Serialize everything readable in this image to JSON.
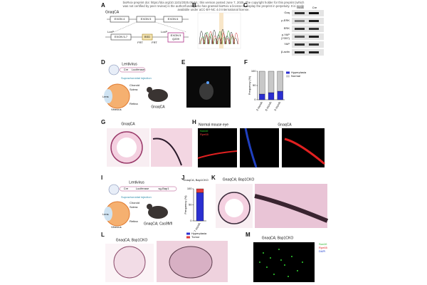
{
  "header": {
    "lines": [
      "bioRxiv preprint doi: https://doi.org/10.1101/2025.06.04.; this version posted June 7, 2025. The copyright holder for this preprint (which",
      "was not certified by peer review) is the author/funder, who has granted bioRxiv a license to display the preprint in perpetuity. It is made",
      "available under aCC-BY-NC 4.0 International license."
    ]
  },
  "panels": {
    "A": {
      "label": "A",
      "title": "GnaqCA",
      "exon4": "EXON 4",
      "exon5": "EXON 5",
      "exon6": "EXON 6",
      "loxp1": "LoxP",
      "exon57": "EXON 5-7",
      "bsd": "BSD",
      "loxp2": "LoxP",
      "exon5q": "EXON 5",
      "q209": "Q209",
      "frt1": "FRT",
      "frt2": "FRT"
    },
    "B": {
      "label": "B"
    },
    "C": {
      "label": "C",
      "mock": "Mock",
      "cre": "Cre",
      "rows": [
        "Gαq",
        "p-ERK",
        "ERK",
        "p-YAP",
        "(Y357)",
        "YAP",
        "β-actin"
      ]
    },
    "D": {
      "label": "D",
      "vector": "Lentivirus",
      "cre": "Cre",
      "luc": "Luciferase",
      "injection": "Suprachoroidal injection",
      "choroid": "Choroid",
      "sclera": "Sclera",
      "lens": "Lens",
      "retina": "Retina",
      "vitreous": "Vitreous",
      "mouse": "GnaqCA"
    },
    "E": {
      "label": "E"
    },
    "F": {
      "label": "F"
    },
    "G": {
      "label": "G",
      "title": "GnaqCA"
    },
    "H": {
      "label": "H",
      "left": "Normal mouse eye",
      "right": "GnaqCA",
      "stain1": "Sox10",
      "stain2": "Rpe65"
    },
    "I": {
      "label": "I",
      "vector": "Lentivirus",
      "cre": "Cre",
      "luc": "Luciferase",
      "sg": "sg-Bap1",
      "injection": "Suprachoroidal injection",
      "choroid": "Choroid",
      "sclera": "Sclera",
      "lens": "Lens",
      "retina": "Retina",
      "vitreous": "Vitreous",
      "mouse": "GnaqCA; Cas9fl/fl"
    },
    "J": {
      "label": "J"
    },
    "K": {
      "label": "K",
      "title": "GnaqCA; Bap1CKO"
    },
    "L": {
      "label": "L",
      "title": "GnaqCA; Bap1CKO"
    },
    "M": {
      "label": "M",
      "title": "GnaqCA; Bap1CKO",
      "stain1": "Sox10",
      "stain2": "Rpe65",
      "stain3": "DAPI"
    }
  },
  "chart_data": [
    {
      "type": "stacked_bar",
      "ylabel": "Frequency (%)",
      "categories": [
        "3 month",
        "6 month",
        "9 month"
      ],
      "series": [
        {
          "name": "Hyperplasia",
          "color": "#2b2fd0",
          "values": [
            20,
            25,
            30
          ]
        },
        {
          "name": "Normal",
          "color": "#c8c8c8",
          "values": [
            80,
            75,
            70
          ]
        }
      ],
      "ylim": [
        0,
        100
      ],
      "yticks": [
        0,
        50,
        100
      ]
    },
    {
      "type": "stacked_bar",
      "title": "GnaqCA; Bap1CKO",
      "ylabel": "Frequency (%)",
      "categories": [
        "7 month"
      ],
      "series": [
        {
          "name": "Hyperplasia",
          "color": "#2b2fd0",
          "values": [
            88
          ]
        },
        {
          "name": "Tumor",
          "color": "#e03a3a",
          "values": [
            12
          ]
        }
      ],
      "ylim": [
        0,
        100
      ],
      "yticks": [
        0,
        50,
        100
      ]
    }
  ]
}
